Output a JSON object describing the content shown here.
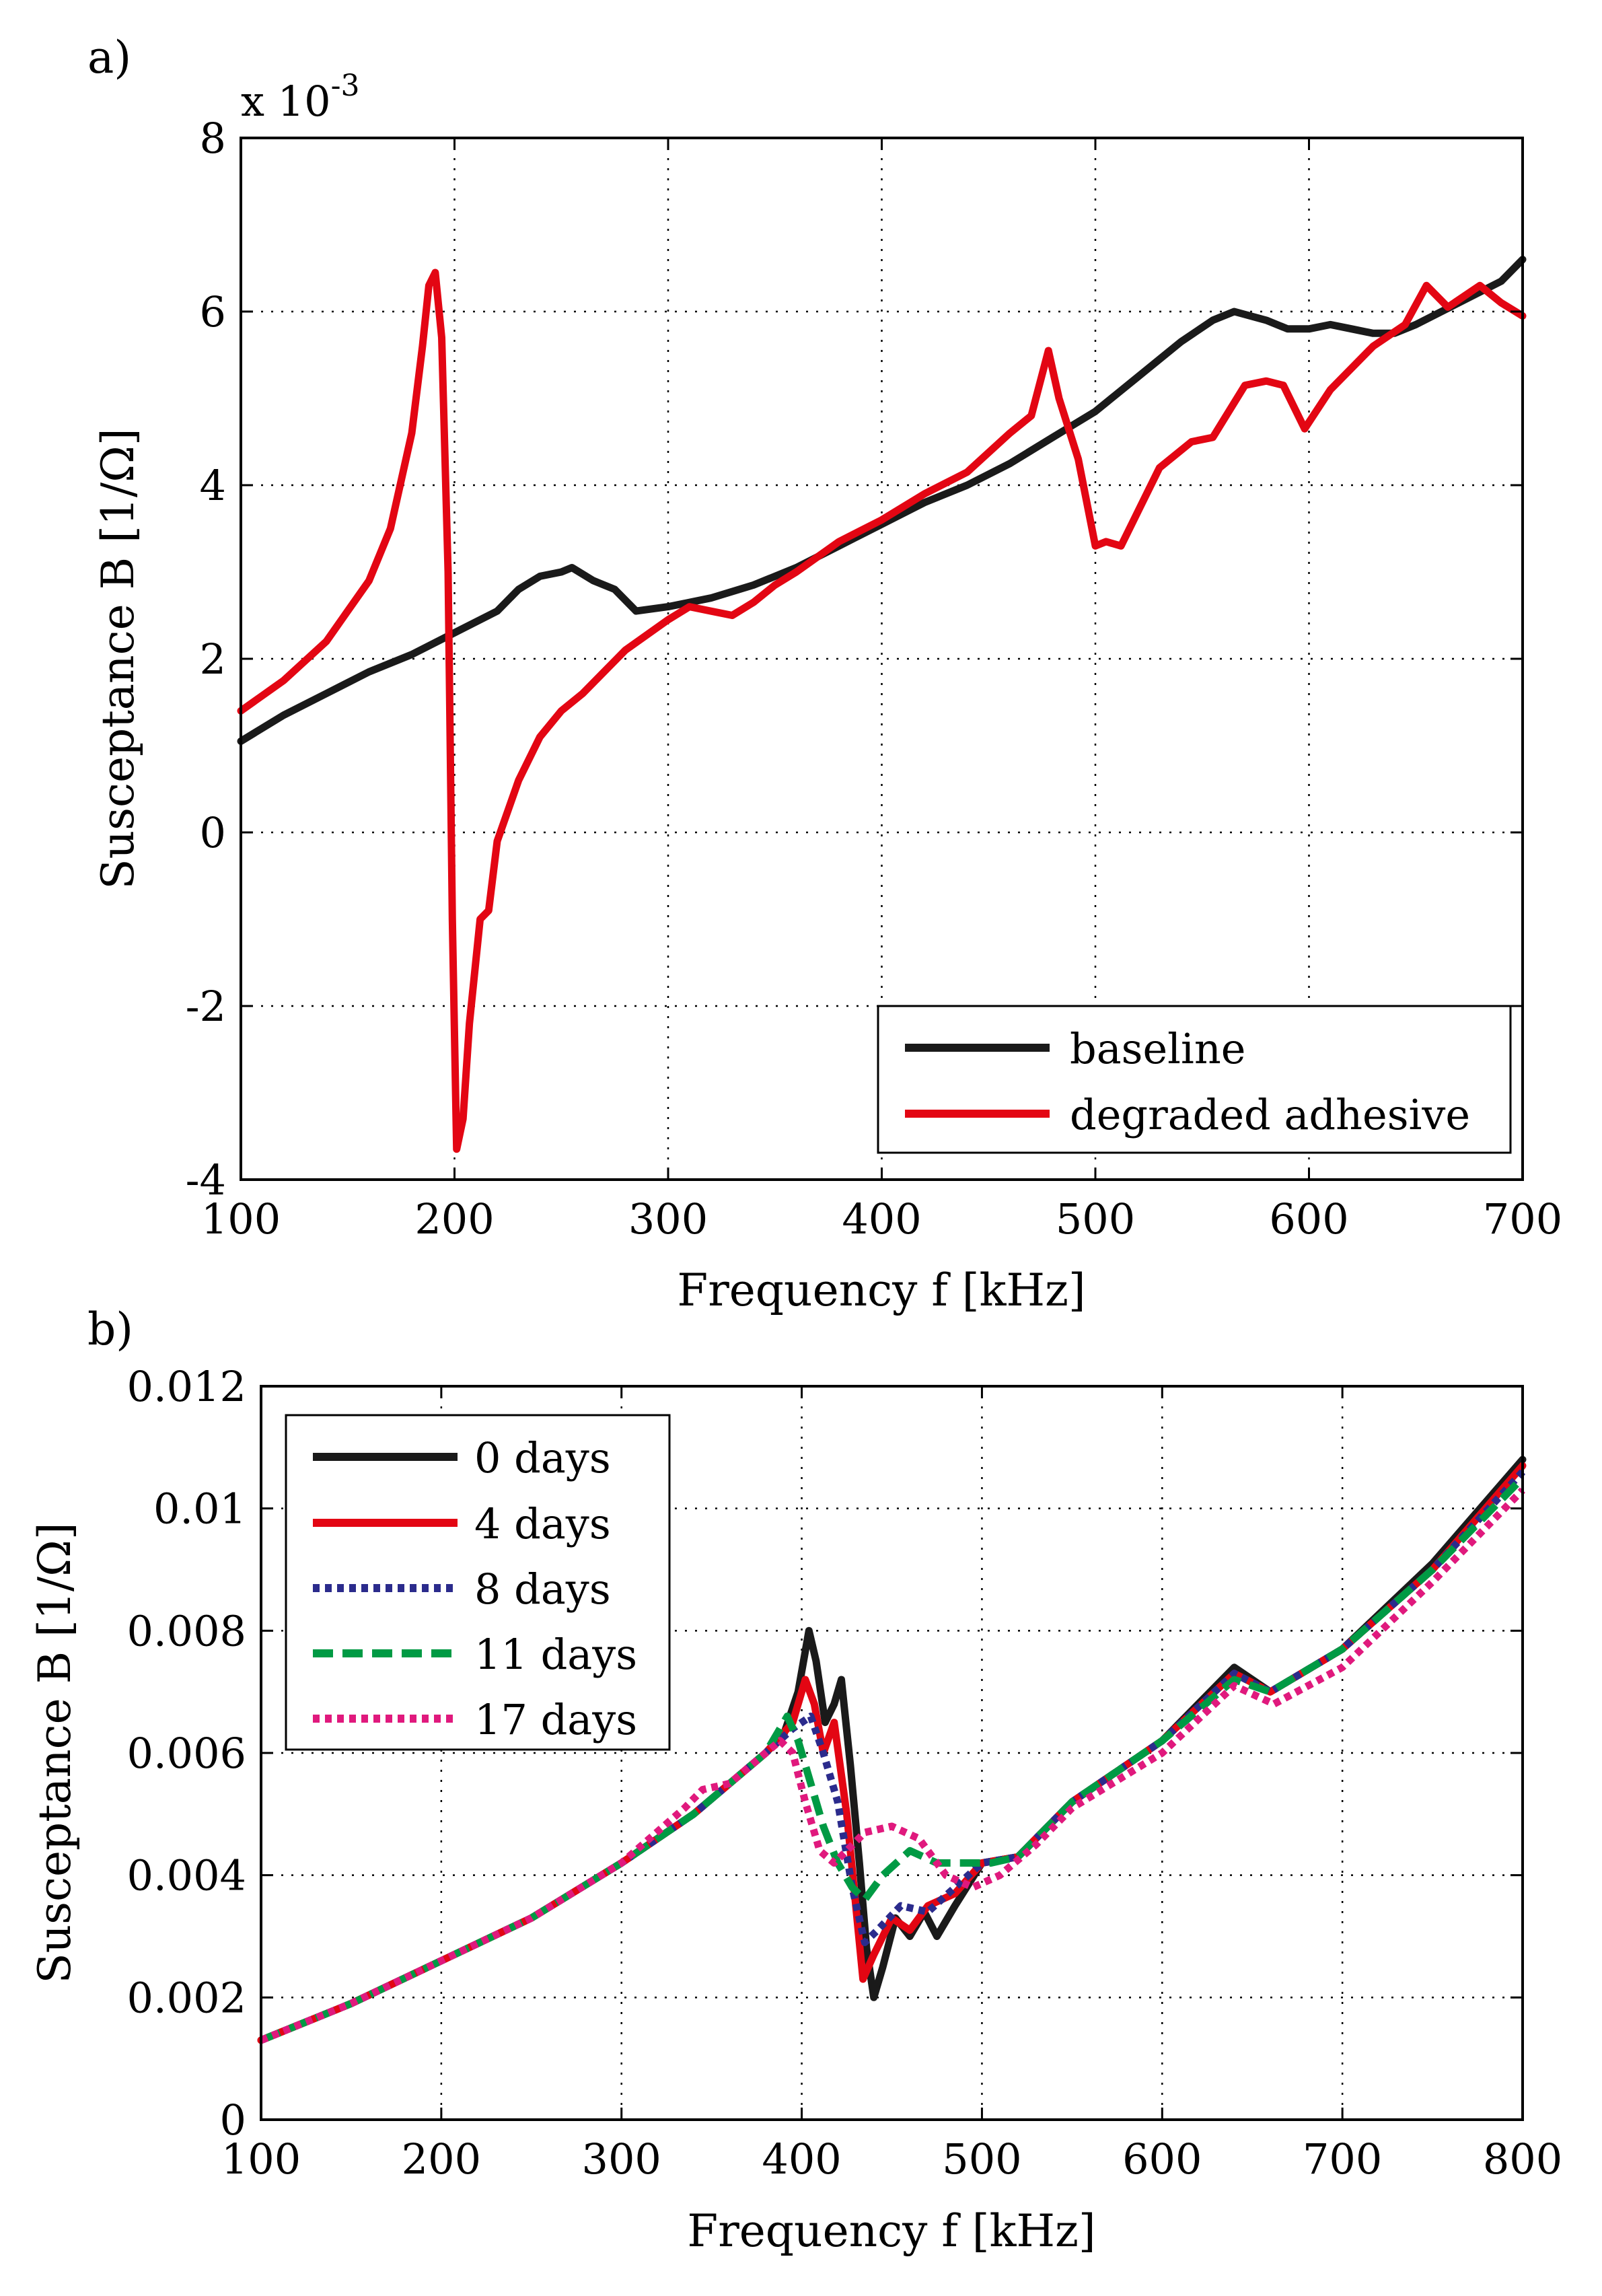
{
  "chart_data": [
    {
      "type": "line",
      "panel_label": "a)",
      "xlabel": "Frequency f [kHz]",
      "ylabel": "Susceptance B [1/Ω]",
      "y_exponent_label": "x 10",
      "y_exponent_power": "-3",
      "xlim": [
        100,
        700
      ],
      "ylim": [
        -4,
        8
      ],
      "xticks": [
        "100",
        "200",
        "300",
        "400",
        "500",
        "600",
        "700"
      ],
      "yticks": [
        "-4",
        "-2",
        "0",
        "2",
        "4",
        "6",
        "8"
      ],
      "grid": true,
      "legend_position": "bottom-right",
      "series": [
        {
          "name": "baseline",
          "color": "#1a1a1a",
          "style": "solid",
          "points": [
            [
              100,
              1.05
            ],
            [
              120,
              1.35
            ],
            [
              140,
              1.6
            ],
            [
              160,
              1.85
            ],
            [
              180,
              2.05
            ],
            [
              200,
              2.3
            ],
            [
              220,
              2.55
            ],
            [
              230,
              2.8
            ],
            [
              240,
              2.95
            ],
            [
              250,
              3.0
            ],
            [
              255,
              3.05
            ],
            [
              265,
              2.9
            ],
            [
              275,
              2.8
            ],
            [
              285,
              2.55
            ],
            [
              300,
              2.6
            ],
            [
              320,
              2.7
            ],
            [
              340,
              2.85
            ],
            [
              360,
              3.05
            ],
            [
              380,
              3.3
            ],
            [
              400,
              3.55
            ],
            [
              420,
              3.8
            ],
            [
              440,
              4.0
            ],
            [
              460,
              4.25
            ],
            [
              480,
              4.55
            ],
            [
              500,
              4.85
            ],
            [
              520,
              5.25
            ],
            [
              540,
              5.65
            ],
            [
              555,
              5.9
            ],
            [
              565,
              6.0
            ],
            [
              580,
              5.9
            ],
            [
              590,
              5.8
            ],
            [
              600,
              5.8
            ],
            [
              610,
              5.85
            ],
            [
              620,
              5.8
            ],
            [
              630,
              5.75
            ],
            [
              640,
              5.75
            ],
            [
              650,
              5.85
            ],
            [
              670,
              6.1
            ],
            [
              690,
              6.35
            ],
            [
              700,
              6.6
            ]
          ]
        },
        {
          "name": "degraded adhesive",
          "color": "#e30613",
          "style": "solid",
          "points": [
            [
              100,
              1.4
            ],
            [
              120,
              1.75
            ],
            [
              140,
              2.2
            ],
            [
              160,
              2.9
            ],
            [
              170,
              3.5
            ],
            [
              180,
              4.6
            ],
            [
              185,
              5.6
            ],
            [
              188,
              6.3
            ],
            [
              191,
              6.45
            ],
            [
              194,
              5.7
            ],
            [
              197,
              3.0
            ],
            [
              199,
              -1.0
            ],
            [
              201,
              -3.65
            ],
            [
              204,
              -3.3
            ],
            [
              207,
              -2.2
            ],
            [
              212,
              -1.0
            ],
            [
              216,
              -0.9
            ],
            [
              220,
              -0.1
            ],
            [
              230,
              0.6
            ],
            [
              240,
              1.1
            ],
            [
              250,
              1.4
            ],
            [
              260,
              1.6
            ],
            [
              280,
              2.1
            ],
            [
              300,
              2.45
            ],
            [
              310,
              2.6
            ],
            [
              320,
              2.55
            ],
            [
              330,
              2.5
            ],
            [
              340,
              2.65
            ],
            [
              350,
              2.85
            ],
            [
              360,
              3.0
            ],
            [
              380,
              3.35
            ],
            [
              400,
              3.6
            ],
            [
              420,
              3.9
            ],
            [
              440,
              4.15
            ],
            [
              460,
              4.6
            ],
            [
              470,
              4.8
            ],
            [
              478,
              5.55
            ],
            [
              483,
              5.0
            ],
            [
              492,
              4.3
            ],
            [
              500,
              3.3
            ],
            [
              505,
              3.35
            ],
            [
              512,
              3.3
            ],
            [
              520,
              3.7
            ],
            [
              530,
              4.2
            ],
            [
              545,
              4.5
            ],
            [
              555,
              4.55
            ],
            [
              570,
              5.15
            ],
            [
              580,
              5.2
            ],
            [
              588,
              5.15
            ],
            [
              598,
              4.65
            ],
            [
              610,
              5.1
            ],
            [
              630,
              5.6
            ],
            [
              645,
              5.85
            ],
            [
              655,
              6.3
            ],
            [
              665,
              6.05
            ],
            [
              680,
              6.3
            ],
            [
              690,
              6.1
            ],
            [
              700,
              5.95
            ]
          ]
        }
      ]
    },
    {
      "type": "line",
      "panel_label": "b)",
      "xlabel": "Frequency f [kHz]",
      "ylabel": "Susceptance B [1/Ω]",
      "xlim": [
        100,
        800
      ],
      "ylim": [
        0,
        0.012
      ],
      "xticks": [
        "100",
        "200",
        "300",
        "400",
        "500",
        "600",
        "700",
        "800"
      ],
      "yticks": [
        "0",
        "0.002",
        "0.004",
        "0.006",
        "0.008",
        "0.01",
        "0.012"
      ],
      "grid": true,
      "legend_position": "top-left",
      "series": [
        {
          "name": "0 days",
          "color": "#1a1a1a",
          "style": "solid",
          "points": [
            [
              100,
              0.0013
            ],
            [
              150,
              0.0019
            ],
            [
              200,
              0.0026
            ],
            [
              250,
              0.0033
            ],
            [
              300,
              0.0042
            ],
            [
              340,
              0.005
            ],
            [
              360,
              0.0055
            ],
            [
              380,
              0.006
            ],
            [
              390,
              0.0063
            ],
            [
              398,
              0.007
            ],
            [
              404,
              0.008
            ],
            [
              408,
              0.0075
            ],
            [
              413,
              0.0065
            ],
            [
              418,
              0.0068
            ],
            [
              422,
              0.0072
            ],
            [
              427,
              0.0058
            ],
            [
              432,
              0.0042
            ],
            [
              436,
              0.0028
            ],
            [
              440,
              0.002
            ],
            [
              445,
              0.0025
            ],
            [
              452,
              0.0033
            ],
            [
              460,
              0.003
            ],
            [
              468,
              0.0034
            ],
            [
              475,
              0.003
            ],
            [
              485,
              0.0035
            ],
            [
              500,
              0.0042
            ],
            [
              520,
              0.0043
            ],
            [
              550,
              0.0052
            ],
            [
              600,
              0.0062
            ],
            [
              640,
              0.0074
            ],
            [
              660,
              0.007
            ],
            [
              700,
              0.0077
            ],
            [
              750,
              0.0091
            ],
            [
              800,
              0.0108
            ]
          ]
        },
        {
          "name": "4 days",
          "color": "#e30613",
          "style": "solid",
          "points": [
            [
              100,
              0.0013
            ],
            [
              150,
              0.0019
            ],
            [
              200,
              0.0026
            ],
            [
              250,
              0.0033
            ],
            [
              300,
              0.0042
            ],
            [
              340,
              0.005
            ],
            [
              360,
              0.0055
            ],
            [
              380,
              0.006
            ],
            [
              395,
              0.0065
            ],
            [
              402,
              0.0072
            ],
            [
              407,
              0.0068
            ],
            [
              412,
              0.006
            ],
            [
              418,
              0.0065
            ],
            [
              425,
              0.005
            ],
            [
              430,
              0.0035
            ],
            [
              434,
              0.0023
            ],
            [
              440,
              0.0027
            ],
            [
              450,
              0.0033
            ],
            [
              460,
              0.0031
            ],
            [
              470,
              0.0035
            ],
            [
              485,
              0.0037
            ],
            [
              500,
              0.0042
            ],
            [
              520,
              0.0043
            ],
            [
              550,
              0.0052
            ],
            [
              600,
              0.0062
            ],
            [
              640,
              0.0073
            ],
            [
              660,
              0.007
            ],
            [
              700,
              0.0077
            ],
            [
              750,
              0.009
            ],
            [
              800,
              0.0107
            ]
          ]
        },
        {
          "name": "8 days",
          "color": "#2b2b8c",
          "style": "dotted",
          "points": [
            [
              100,
              0.0013
            ],
            [
              150,
              0.0019
            ],
            [
              200,
              0.0026
            ],
            [
              250,
              0.0033
            ],
            [
              300,
              0.0042
            ],
            [
              340,
              0.005
            ],
            [
              360,
              0.0055
            ],
            [
              380,
              0.006
            ],
            [
              395,
              0.0064
            ],
            [
              405,
              0.0066
            ],
            [
              412,
              0.006
            ],
            [
              420,
              0.0052
            ],
            [
              428,
              0.0038
            ],
            [
              435,
              0.0029
            ],
            [
              442,
              0.0031
            ],
            [
              455,
              0.0035
            ],
            [
              470,
              0.0034
            ],
            [
              485,
              0.0038
            ],
            [
              500,
              0.0042
            ],
            [
              520,
              0.0043
            ],
            [
              550,
              0.0052
            ],
            [
              600,
              0.0062
            ],
            [
              640,
              0.0073
            ],
            [
              660,
              0.007
            ],
            [
              700,
              0.0077
            ],
            [
              750,
              0.009
            ],
            [
              800,
              0.0106
            ]
          ]
        },
        {
          "name": "11 days",
          "color": "#009a44",
          "style": "dashed",
          "points": [
            [
              100,
              0.0013
            ],
            [
              150,
              0.0019
            ],
            [
              200,
              0.0026
            ],
            [
              250,
              0.0033
            ],
            [
              300,
              0.0042
            ],
            [
              340,
              0.005
            ],
            [
              360,
              0.0055
            ],
            [
              380,
              0.006
            ],
            [
              392,
              0.0066
            ],
            [
              398,
              0.0062
            ],
            [
              405,
              0.0055
            ],
            [
              412,
              0.0048
            ],
            [
              420,
              0.0042
            ],
            [
              428,
              0.0038
            ],
            [
              435,
              0.0036
            ],
            [
              445,
              0.004
            ],
            [
              460,
              0.0044
            ],
            [
              475,
              0.0042
            ],
            [
              490,
              0.0042
            ],
            [
              505,
              0.0042
            ],
            [
              520,
              0.0043
            ],
            [
              550,
              0.0052
            ],
            [
              600,
              0.0062
            ],
            [
              640,
              0.0072
            ],
            [
              660,
              0.007
            ],
            [
              700,
              0.0077
            ],
            [
              750,
              0.009
            ],
            [
              800,
              0.0105
            ]
          ]
        },
        {
          "name": "17 days",
          "color": "#e0197d",
          "style": "dotted",
          "points": [
            [
              100,
              0.0013
            ],
            [
              150,
              0.0019
            ],
            [
              200,
              0.0026
            ],
            [
              250,
              0.0033
            ],
            [
              300,
              0.0042
            ],
            [
              335,
              0.0051
            ],
            [
              345,
              0.0054
            ],
            [
              360,
              0.0055
            ],
            [
              380,
              0.006
            ],
            [
              388,
              0.0062
            ],
            [
              395,
              0.006
            ],
            [
              402,
              0.0052
            ],
            [
              410,
              0.0044
            ],
            [
              418,
              0.0042
            ],
            [
              425,
              0.0044
            ],
            [
              435,
              0.0047
            ],
            [
              450,
              0.0048
            ],
            [
              465,
              0.0046
            ],
            [
              480,
              0.004
            ],
            [
              495,
              0.0038
            ],
            [
              510,
              0.004
            ],
            [
              530,
              0.0045
            ],
            [
              550,
              0.0051
            ],
            [
              600,
              0.006
            ],
            [
              640,
              0.0071
            ],
            [
              662,
              0.0068
            ],
            [
              700,
              0.0074
            ],
            [
              750,
              0.0088
            ],
            [
              800,
              0.0103
            ]
          ]
        }
      ]
    }
  ]
}
